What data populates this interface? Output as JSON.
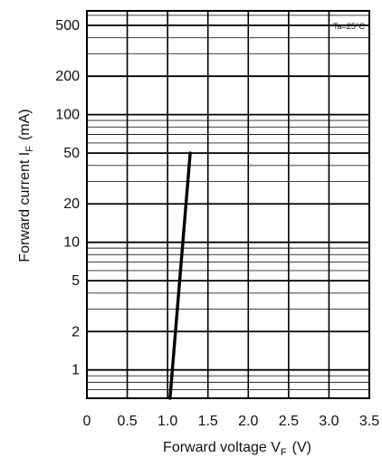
{
  "chart_data": {
    "type": "line",
    "title": "",
    "xlabel": "Forward voltage V",
    "xlabel_subscript": "F",
    "xlabel_unit": "(V)",
    "ylabel": "Forward current I",
    "ylabel_subscript": "F",
    "ylabel_unit": "(mA)",
    "xlim": [
      0,
      3.5
    ],
    "ylim": [
      0.6,
      650
    ],
    "yscale": "log",
    "grid": true,
    "x_ticks": [
      "0",
      "0.5",
      "1.0",
      "1.5",
      "2.0",
      "2.5",
      "3.0",
      "3.5"
    ],
    "y_ticks": [
      "1",
      "2",
      "5",
      "10",
      "20",
      "50",
      "100",
      "200",
      "500"
    ],
    "annotation": "Ta=25°C",
    "series": [
      {
        "x": [
          1.03,
          1.28
        ],
        "y": [
          0.6,
          50
        ]
      }
    ]
  },
  "colors": {
    "line": "#000000",
    "grid": "#000000",
    "background": "#ffffff"
  }
}
